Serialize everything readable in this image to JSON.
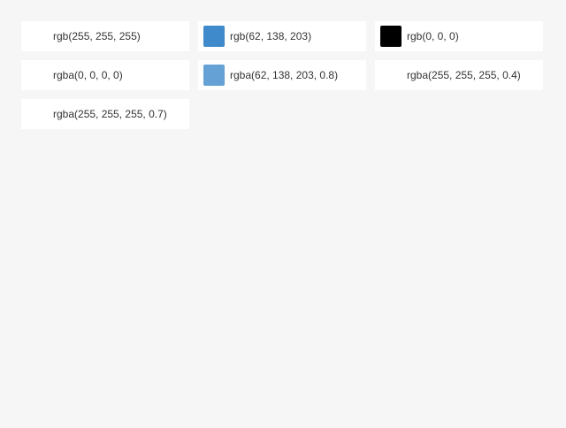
{
  "swatches": [
    {
      "label": "rgb(255, 255, 255)"
    },
    {
      "label": "rgb(62, 138, 203)"
    },
    {
      "label": "rgb(0, 0, 0)"
    },
    {
      "label": "rgba(0, 0, 0, 0)"
    },
    {
      "label": "rgba(62, 138, 203, 0.8)"
    },
    {
      "label": "rgba(255, 255, 255, 0.4)"
    },
    {
      "label": "rgba(255, 255, 255, 0.7)"
    }
  ]
}
